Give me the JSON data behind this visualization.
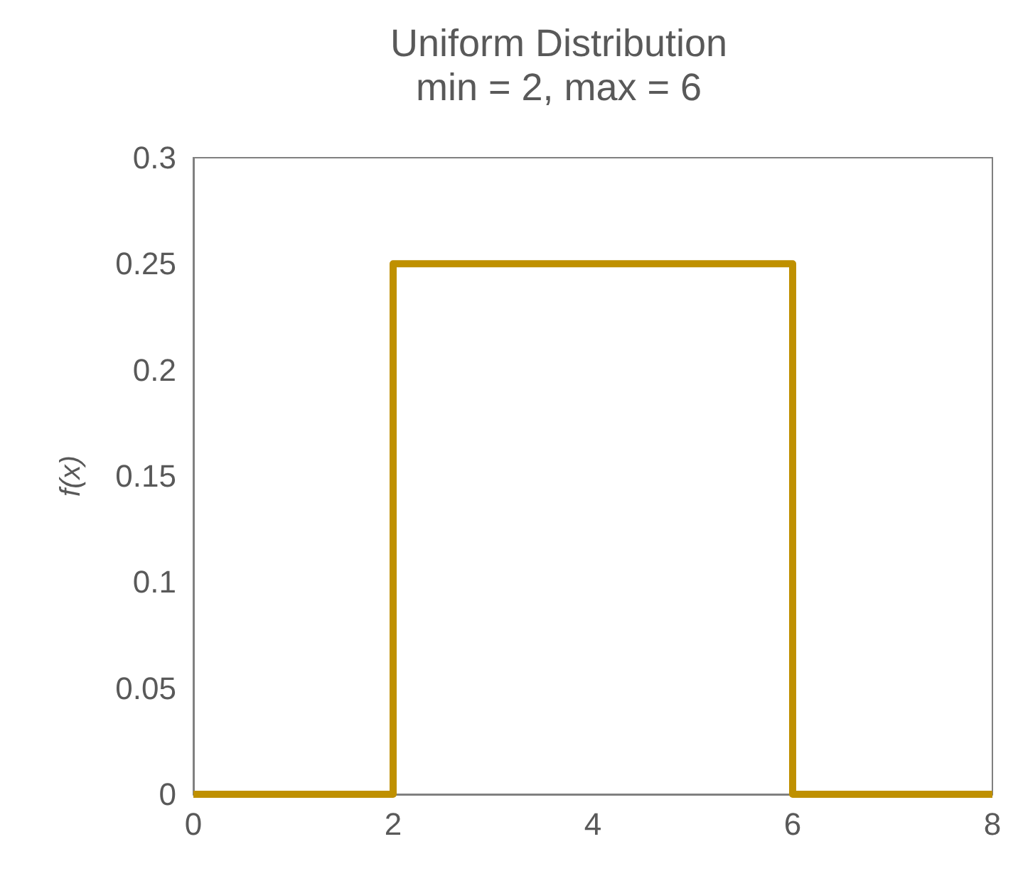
{
  "chart_data": {
    "type": "line",
    "title": "Uniform Distribution",
    "subtitle": "min = 2, max = 6",
    "ylabel": "f(x)",
    "x": [
      0,
      2,
      2,
      6,
      6,
      8
    ],
    "series": [
      {
        "color": "#bf9000",
        "values": [
          0,
          0,
          0.25,
          0.25,
          0,
          0
        ]
      }
    ],
    "xlim": [
      0,
      8
    ],
    "xticks": [
      0,
      2,
      4,
      6,
      8
    ],
    "ylim": [
      0,
      0.3
    ],
    "yticks": [
      0,
      0.05,
      0.1,
      0.15,
      0.2,
      0.25,
      0.3
    ],
    "grid": false,
    "marker": "none",
    "line_style": "solid"
  }
}
